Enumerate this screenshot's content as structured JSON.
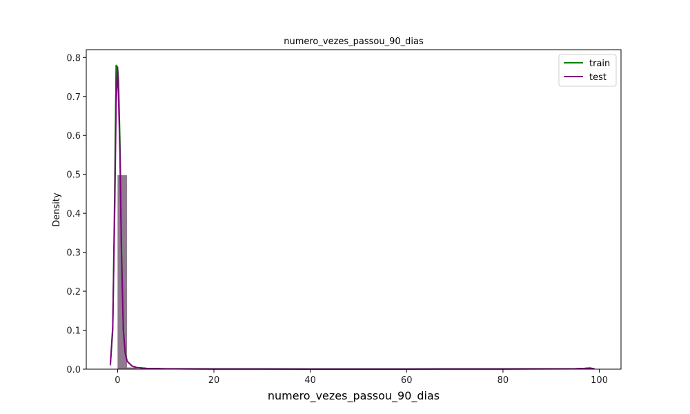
{
  "chart_data": {
    "type": "histogram+kde",
    "title": "numero_vezes_passou_90_dias",
    "xlabel": "numero_vezes_passou_90_dias",
    "ylabel": "Density",
    "xlim": [
      -6.5,
      104.5
    ],
    "ylim": [
      0,
      0.82
    ],
    "xticks": [
      0,
      20,
      40,
      60,
      80,
      100
    ],
    "yticks": [
      0.0,
      0.1,
      0.2,
      0.3,
      0.4,
      0.5,
      0.6,
      0.7,
      0.8
    ],
    "grid": false,
    "legend_position": "top-right",
    "histograms": [
      {
        "name": "train",
        "color": "#008000",
        "bins": [
          {
            "x0": 0,
            "x1": 1.96,
            "density": 0.498
          },
          {
            "x0": 1.96,
            "x1": 3.92,
            "density": 0.004
          },
          {
            "x0": 3.92,
            "x1": 5.88,
            "density": 0.0006
          },
          {
            "x0": 96.04,
            "x1": 98.0,
            "density": 0.0016
          }
        ]
      },
      {
        "name": "test",
        "color": "#800080",
        "bins": [
          {
            "x0": 0,
            "x1": 1.96,
            "density": 0.498
          },
          {
            "x0": 1.96,
            "x1": 3.92,
            "density": 0.0045
          },
          {
            "x0": 3.92,
            "x1": 5.88,
            "density": 0.0007
          },
          {
            "x0": 96.04,
            "x1": 98.0,
            "density": 0.0017
          }
        ]
      }
    ],
    "series": [
      {
        "name": "train",
        "color": "#008000",
        "x": [
          -1.5,
          -1.0,
          -0.6,
          -0.3,
          0.0,
          0.2,
          0.5,
          0.8,
          1.2,
          1.6,
          2.0,
          3.0,
          4.0,
          6.0,
          10,
          20,
          40,
          60,
          80,
          95,
          97,
          98,
          99
        ],
        "y": [
          0.01,
          0.1,
          0.45,
          0.78,
          0.775,
          0.74,
          0.58,
          0.32,
          0.1,
          0.04,
          0.02,
          0.008,
          0.004,
          0.002,
          0.001,
          0.0005,
          0.0003,
          0.0003,
          0.0004,
          0.001,
          0.002,
          0.003,
          0.001
        ]
      },
      {
        "name": "test",
        "color": "#800080",
        "x": [
          -1.5,
          -1.0,
          -0.6,
          -0.3,
          0.0,
          0.2,
          0.5,
          0.8,
          1.2,
          1.6,
          2.0,
          3.0,
          4.0,
          6.0,
          10,
          20,
          40,
          60,
          80,
          95,
          97,
          98,
          99
        ],
        "y": [
          0.01,
          0.11,
          0.4,
          0.68,
          0.775,
          0.7,
          0.55,
          0.3,
          0.1,
          0.04,
          0.02,
          0.008,
          0.004,
          0.002,
          0.001,
          0.0005,
          0.0003,
          0.0003,
          0.0004,
          0.001,
          0.002,
          0.003,
          0.001
        ]
      }
    ],
    "legend": [
      {
        "label": "train",
        "color": "#008000"
      },
      {
        "label": "test",
        "color": "#800080"
      }
    ]
  }
}
